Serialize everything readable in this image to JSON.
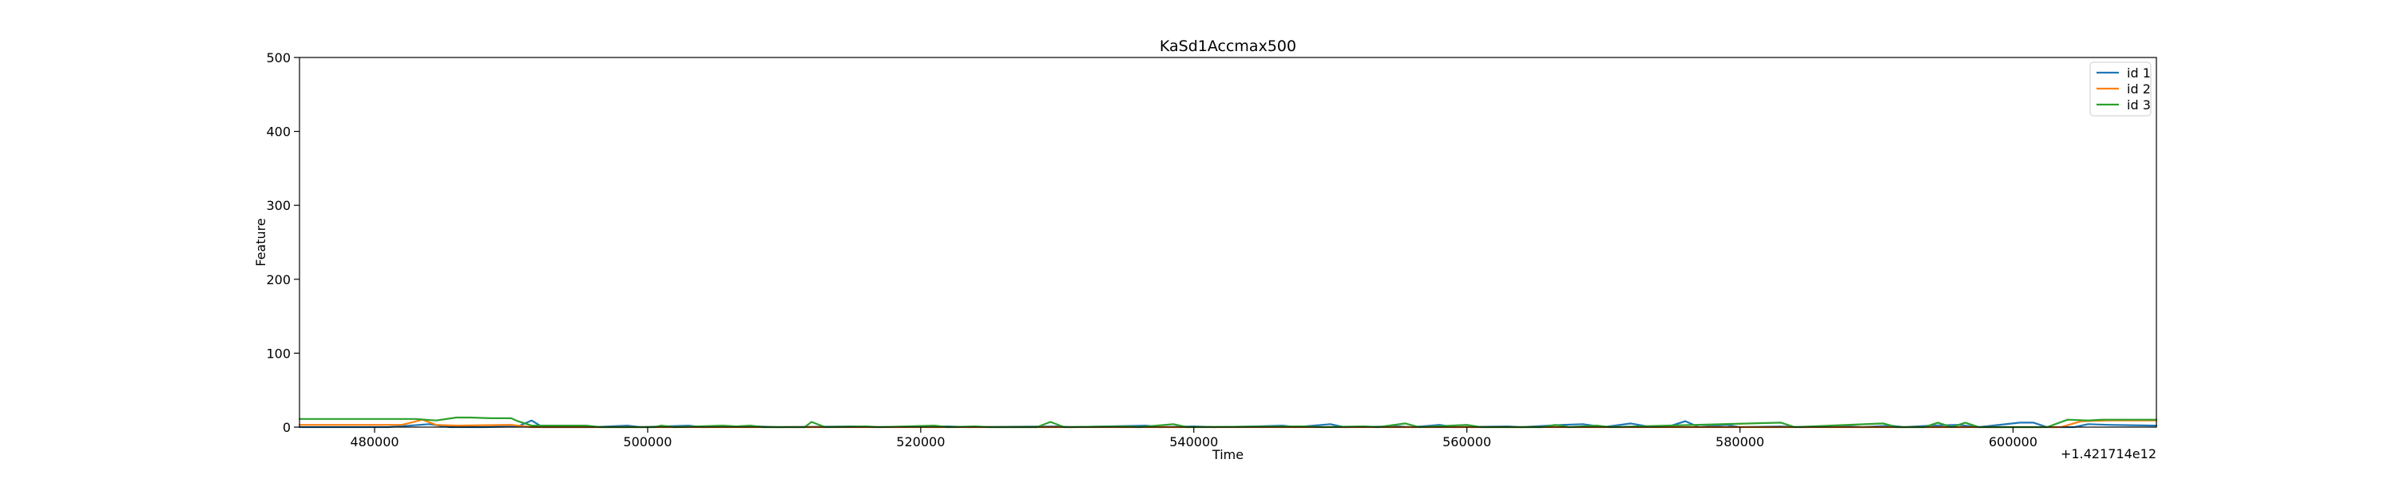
{
  "chart_data": {
    "type": "line",
    "title": "KaSd1Accmax500",
    "xlabel": "Time",
    "ylabel": "Feature",
    "x_offset_label": "+1.421714e12",
    "xlim": [
      474500,
      610500
    ],
    "ylim": [
      0,
      500
    ],
    "xticks": [
      480000,
      500000,
      520000,
      540000,
      560000,
      580000,
      600000
    ],
    "yticks": [
      0,
      100,
      200,
      300,
      400,
      500
    ],
    "grid": false,
    "legend_position": "top-right",
    "series": [
      {
        "name": "id 1",
        "color": "#1f77b4",
        "points": [
          [
            474500,
            0
          ],
          [
            481000,
            0
          ],
          [
            484000,
            4
          ],
          [
            485500,
            0
          ],
          [
            488000,
            0
          ],
          [
            490500,
            1
          ],
          [
            491500,
            9
          ],
          [
            492300,
            0
          ],
          [
            496000,
            0
          ],
          [
            498500,
            2
          ],
          [
            499500,
            0
          ],
          [
            503000,
            2
          ],
          [
            504000,
            0
          ],
          [
            508000,
            1
          ],
          [
            509500,
            0
          ],
          [
            515000,
            1
          ],
          [
            516500,
            0
          ],
          [
            522000,
            1
          ],
          [
            523500,
            0
          ],
          [
            530000,
            1
          ],
          [
            531000,
            0
          ],
          [
            536500,
            2
          ],
          [
            537500,
            0
          ],
          [
            540000,
            1
          ],
          [
            541500,
            0
          ],
          [
            544500,
            1
          ],
          [
            546500,
            2
          ],
          [
            547500,
            0
          ],
          [
            550000,
            4
          ],
          [
            551000,
            0
          ],
          [
            555000,
            1
          ],
          [
            556000,
            0
          ],
          [
            558000,
            3
          ],
          [
            559000,
            0
          ],
          [
            563000,
            1
          ],
          [
            564000,
            0
          ],
          [
            567000,
            3
          ],
          [
            568500,
            4
          ],
          [
            570000,
            0
          ],
          [
            572000,
            5
          ],
          [
            573500,
            0
          ],
          [
            575000,
            2
          ],
          [
            576000,
            8
          ],
          [
            577000,
            0
          ],
          [
            579000,
            3
          ],
          [
            580000,
            0
          ],
          [
            583000,
            1
          ],
          [
            584500,
            0
          ],
          [
            588000,
            1
          ],
          [
            589000,
            0
          ],
          [
            591000,
            2
          ],
          [
            592000,
            0
          ],
          [
            594000,
            2
          ],
          [
            596000,
            3
          ],
          [
            597500,
            0
          ],
          [
            600500,
            6
          ],
          [
            601500,
            6
          ],
          [
            602500,
            0
          ],
          [
            604500,
            0
          ],
          [
            605500,
            4
          ],
          [
            607000,
            3
          ],
          [
            610500,
            2
          ]
        ]
      },
      {
        "name": "id 2",
        "color": "#ff7f0e",
        "points": [
          [
            474500,
            3
          ],
          [
            482000,
            3
          ],
          [
            483500,
            10
          ],
          [
            484500,
            3
          ],
          [
            486000,
            2
          ],
          [
            490000,
            3
          ],
          [
            491500,
            0
          ],
          [
            500000,
            0
          ],
          [
            510000,
            0
          ],
          [
            520000,
            0
          ],
          [
            530000,
            0
          ],
          [
            540000,
            0
          ],
          [
            550000,
            0
          ],
          [
            560000,
            0
          ],
          [
            570000,
            0
          ],
          [
            580000,
            0
          ],
          [
            590000,
            0
          ],
          [
            600000,
            0
          ],
          [
            603500,
            0
          ],
          [
            605000,
            8
          ],
          [
            607000,
            9
          ],
          [
            610500,
            9
          ]
        ]
      },
      {
        "name": "id 3",
        "color": "#2ca02c",
        "points": [
          [
            474500,
            11
          ],
          [
            478000,
            11
          ],
          [
            480000,
            11
          ],
          [
            483000,
            11
          ],
          [
            484500,
            9
          ],
          [
            486000,
            13
          ],
          [
            487000,
            13
          ],
          [
            488500,
            12
          ],
          [
            490000,
            12
          ],
          [
            490500,
            8
          ],
          [
            491500,
            2
          ],
          [
            494500,
            2
          ],
          [
            495500,
            2
          ],
          [
            496500,
            0
          ],
          [
            500500,
            0
          ],
          [
            501000,
            2
          ],
          [
            502000,
            0
          ],
          [
            505500,
            2
          ],
          [
            506500,
            1
          ],
          [
            507500,
            2
          ],
          [
            508500,
            0
          ],
          [
            511500,
            0
          ],
          [
            512000,
            7
          ],
          [
            513000,
            0
          ],
          [
            516000,
            1
          ],
          [
            517000,
            0
          ],
          [
            521000,
            2
          ],
          [
            522000,
            0
          ],
          [
            524000,
            1
          ],
          [
            525000,
            0
          ],
          [
            528500,
            0
          ],
          [
            529500,
            7
          ],
          [
            530500,
            0
          ],
          [
            535000,
            1
          ],
          [
            536000,
            0
          ],
          [
            538500,
            4
          ],
          [
            539500,
            0
          ],
          [
            548000,
            1
          ],
          [
            549500,
            0
          ],
          [
            552500,
            1
          ],
          [
            553500,
            0
          ],
          [
            555500,
            5
          ],
          [
            556500,
            0
          ],
          [
            560000,
            3
          ],
          [
            561000,
            0
          ],
          [
            565500,
            0
          ],
          [
            566500,
            3
          ],
          [
            567500,
            0
          ],
          [
            569500,
            2
          ],
          [
            570500,
            0
          ],
          [
            583000,
            6
          ],
          [
            584000,
            0
          ],
          [
            590500,
            5
          ],
          [
            591500,
            0
          ],
          [
            593500,
            0
          ],
          [
            594500,
            6
          ],
          [
            595500,
            0
          ],
          [
            596500,
            6
          ],
          [
            597500,
            0
          ],
          [
            602500,
            0
          ],
          [
            604000,
            10
          ],
          [
            605500,
            9
          ],
          [
            606500,
            10
          ],
          [
            610500,
            10
          ]
        ]
      }
    ]
  }
}
